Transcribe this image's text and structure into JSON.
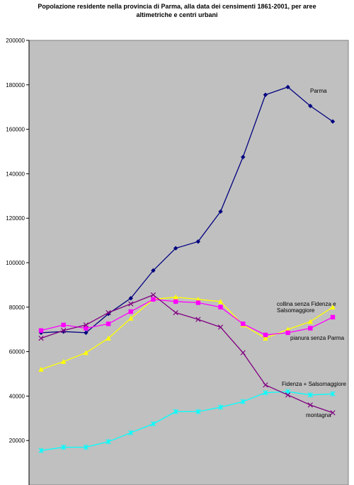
{
  "chart_data": {
    "type": "line",
    "title": "Popolazione residente nella provincia di Parma, alla data dei censimenti 1861-2001, per aree altimetriche e centri urbani",
    "xlabel": "",
    "ylabel": "",
    "ylim": [
      0,
      200000
    ],
    "yticks": [
      20000,
      40000,
      60000,
      80000,
      100000,
      120000,
      140000,
      160000,
      180000,
      200000
    ],
    "grid": false,
    "plot_background": "#c0c0c0",
    "n_points": 14,
    "series": [
      {
        "name": "Parma",
        "label_lines": [
          "Parma"
        ],
        "color": "#000080",
        "marker": "diamond",
        "values": [
          68500,
          69000,
          68500,
          77000,
          84000,
          96500,
          106500,
          109500,
          123000,
          147500,
          175500,
          179000,
          170500,
          163500
        ]
      },
      {
        "name": "collina senza Fidenza e Salsomaggiore",
        "label_lines": [
          "collina senza Fidenza e",
          "Salsomaggiore"
        ],
        "color": "#ffff00",
        "marker": "triangle",
        "values": [
          52000,
          55500,
          59500,
          66000,
          75000,
          83500,
          84500,
          83500,
          82500,
          72000,
          66000,
          70000,
          73500,
          80000
        ]
      },
      {
        "name": "pianura senza Parma",
        "label_lines": [
          "pianura senza Parma"
        ],
        "color": "#ff00ff",
        "marker": "square",
        "values": [
          69500,
          72000,
          70500,
          72500,
          78000,
          83500,
          82500,
          82000,
          80000,
          72500,
          67500,
          68500,
          70500,
          75500
        ]
      },
      {
        "name": "Fidenza + Salsomaggiore",
        "label_lines": [
          "Fidenza + Salsomaggiore"
        ],
        "color": "#00ffff",
        "marker": "star",
        "values": [
          15500,
          17000,
          17000,
          19500,
          23500,
          27500,
          33000,
          33000,
          35000,
          37500,
          41500,
          42000,
          40500,
          41000
        ]
      },
      {
        "name": "montagna",
        "label_lines": [
          "montagna"
        ],
        "color": "#800080",
        "marker": "x",
        "values": [
          66000,
          69500,
          72000,
          77500,
          81500,
          85500,
          77500,
          74500,
          71000,
          59500,
          45000,
          40500,
          36000,
          32500
        ]
      }
    ]
  }
}
